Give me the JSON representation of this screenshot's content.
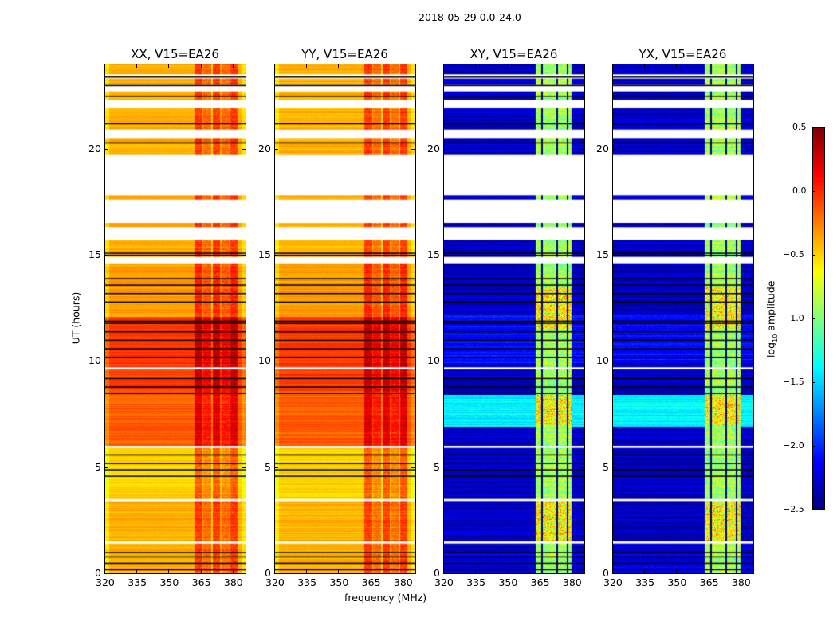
{
  "chart_data": {
    "type": "heatmap",
    "suptitle": "2018-05-29 0.0-24.0",
    "xlabel": "frequency (MHz)",
    "ylabel": "UT (hours)",
    "xlim": [
      320,
      386
    ],
    "ylim": [
      0,
      24
    ],
    "xticks": [
      320,
      335,
      350,
      365,
      380
    ],
    "yticks": [
      0,
      5,
      10,
      15,
      20
    ],
    "colorbar": {
      "label": "log10 amplitude",
      "label_main": "log",
      "label_sub": "10",
      "label_rest": " amplitude",
      "range": [
        -2.5,
        0.5
      ],
      "ticks": [
        "0.5",
        "0.0",
        "−0.5",
        "−1.0",
        "−1.5",
        "−2.0",
        "−2.5"
      ],
      "tick_values": [
        0.5,
        0.0,
        -0.5,
        -1.0,
        -1.5,
        -2.0,
        -2.5
      ],
      "colormap": "jet"
    },
    "panels": [
      {
        "title": "XX, V15=EA26",
        "kind": "parallel"
      },
      {
        "title": "YY, V15=EA26",
        "kind": "parallel"
      },
      {
        "title": "XY, V15=EA26",
        "kind": "cross"
      },
      {
        "title": "YX, V15=EA26",
        "kind": "cross"
      }
    ],
    "parallel_levels": [
      [
        0,
        3.4,
        -0.4
      ],
      [
        3.4,
        6.0,
        -0.5
      ],
      [
        6.0,
        8.6,
        -0.15
      ],
      [
        8.6,
        12.1,
        -0.05
      ],
      [
        12.1,
        15.2,
        -0.35
      ],
      [
        15.2,
        24,
        -0.4
      ]
    ],
    "cross_levels": [
      [
        0,
        0.9,
        -2.2
      ],
      [
        0.9,
        6.9,
        -2.3
      ],
      [
        6.9,
        8.4,
        -1.4
      ],
      [
        8.4,
        9.9,
        -2.3
      ],
      [
        9.9,
        12.2,
        -2.1
      ],
      [
        12.2,
        24,
        -2.3
      ]
    ],
    "rfi_band_mhz": [
      362,
      382
    ],
    "flagged_hours": [
      [
        17.8,
        19.7
      ],
      [
        16.5,
        17.6
      ],
      [
        20.5,
        20.9
      ],
      [
        21.9,
        22.3
      ],
      [
        22.7,
        23.0
      ],
      [
        23.3,
        23.5
      ],
      [
        15.7,
        16.3
      ],
      [
        1.4,
        1.5
      ],
      [
        3.4,
        3.5
      ],
      [
        5.9,
        6.0
      ],
      [
        9.6,
        9.7
      ],
      [
        14.6,
        14.9
      ]
    ],
    "black_line_hours": [
      0.2,
      0.5,
      0.8,
      1.0,
      4.6,
      4.9,
      5.2,
      5.6,
      8.5,
      8.8,
      9.2,
      10.2,
      10.6,
      11.0,
      11.4,
      11.8,
      11.9,
      12.8,
      13.2,
      13.6,
      13.9,
      15.0,
      15.1,
      20.3,
      21.2,
      22.5,
      23.0,
      23.4
    ]
  }
}
